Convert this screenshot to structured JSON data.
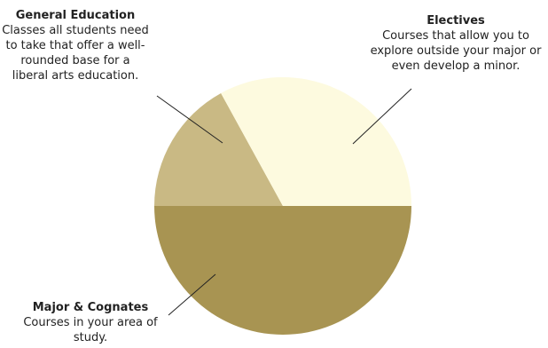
{
  "chart_data": {
    "type": "pie",
    "title": "",
    "slices": [
      {
        "label": "Major & Cognates",
        "description": "Courses in your area of study.",
        "value": 50,
        "color": "#a89452"
      },
      {
        "label": "Electives",
        "description": "Courses that allow you to explore outside your major or even develop a minor.",
        "value": 17,
        "color": "#c9b984"
      },
      {
        "label": "General Education",
        "description": "Classes all students need to take that offer a well-rounded base for a liberal arts education.",
        "value": 33,
        "color": "#fdfadf"
      }
    ]
  }
}
